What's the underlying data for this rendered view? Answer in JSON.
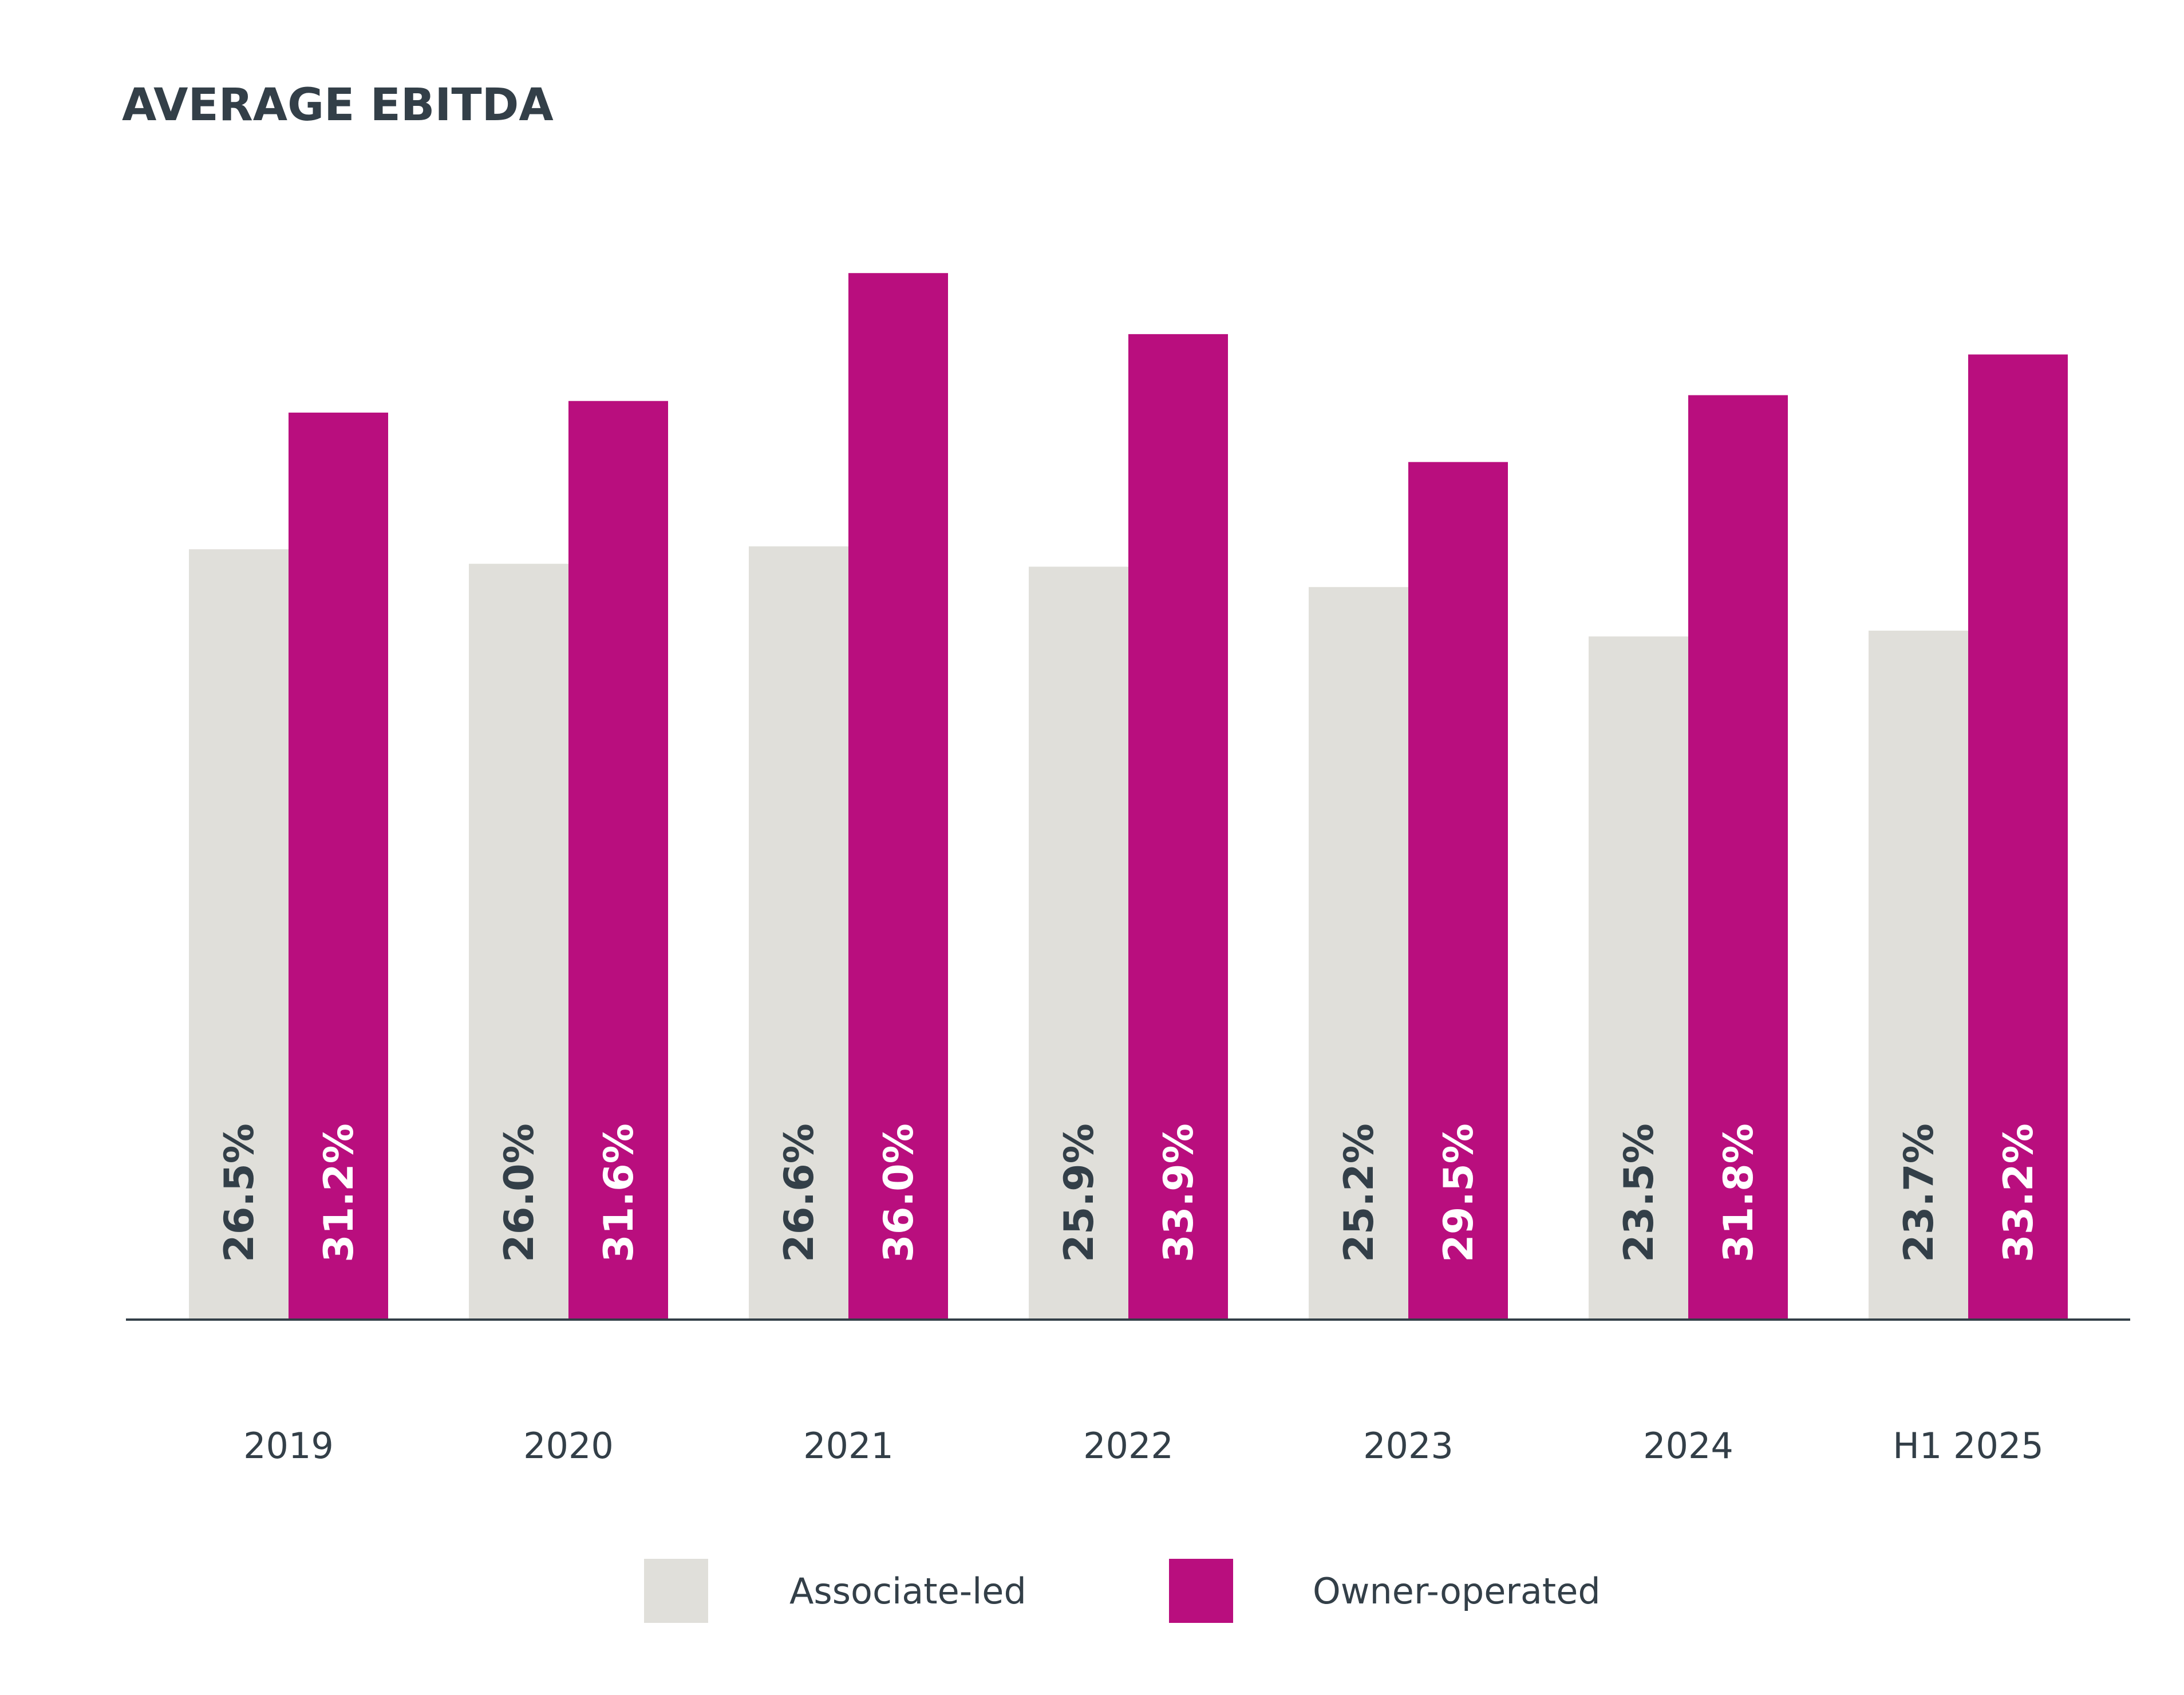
{
  "chart_data": {
    "type": "bar",
    "title": "AVERAGE EBITDA",
    "xlabel": "",
    "ylabel": "",
    "categories": [
      "2019",
      "2020",
      "2021",
      "2022",
      "2023",
      "2024",
      "H1 2025"
    ],
    "series": [
      {
        "name": "Associate-led",
        "color": "#e0dfda",
        "label_color": "#333f48",
        "values": [
          26.5,
          26.0,
          26.6,
          25.9,
          25.2,
          23.5,
          23.7
        ],
        "labels": [
          "26.5%",
          "26.0%",
          "26.6%",
          "25.9%",
          "25.2%",
          "23.5%",
          "23.7%"
        ]
      },
      {
        "name": "Owner-operated",
        "color": "#b90e7e",
        "label_color": "#ffffff",
        "values": [
          31.2,
          31.6,
          36.0,
          33.9,
          29.5,
          31.8,
          33.2
        ],
        "labels": [
          "31.2%",
          "31.6%",
          "36.0%",
          "33.9%",
          "29.5%",
          "31.8%",
          "33.2%"
        ]
      }
    ],
    "ylim": [
      0,
      36
    ],
    "grid": false,
    "legend_position": "bottom",
    "text_color": "#333f48",
    "axis_color": "#333f48"
  }
}
